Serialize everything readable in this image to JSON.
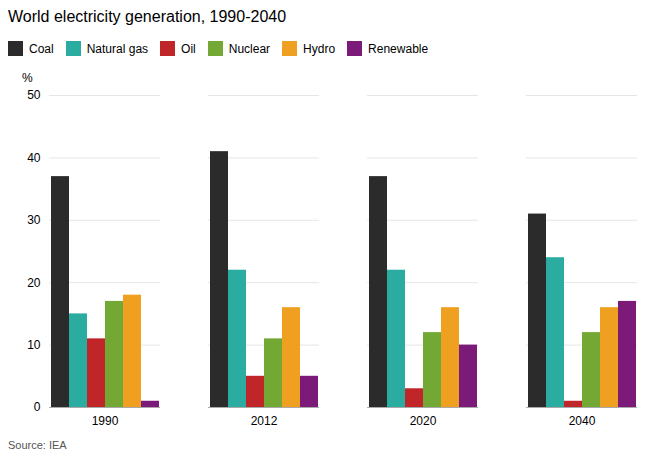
{
  "chart_data": {
    "type": "bar",
    "title": "World electricity generation, 1990-2040",
    "ylabel": "%",
    "source": "Source: IEA",
    "categories": [
      "1990",
      "2012",
      "2020",
      "2040"
    ],
    "series": [
      {
        "name": "Coal",
        "color": "#2b2b2b",
        "values": [
          37,
          41,
          37,
          31
        ]
      },
      {
        "name": "Natural gas",
        "color": "#2aaca0",
        "values": [
          15,
          22,
          22,
          24
        ]
      },
      {
        "name": "Oil",
        "color": "#c0252a",
        "values": [
          11,
          5,
          3,
          1
        ]
      },
      {
        "name": "Nuclear",
        "color": "#72a833",
        "values": [
          17,
          11,
          12,
          12
        ]
      },
      {
        "name": "Hydro",
        "color": "#f0a020",
        "values": [
          18,
          16,
          16,
          16
        ]
      },
      {
        "name": "Renewable",
        "color": "#7b1a78",
        "values": [
          1,
          5,
          10,
          17
        ]
      }
    ],
    "ylim": [
      0,
      50
    ],
    "yticks": [
      0,
      10,
      20,
      30,
      40,
      50
    ],
    "grid": true,
    "legend": "top"
  }
}
